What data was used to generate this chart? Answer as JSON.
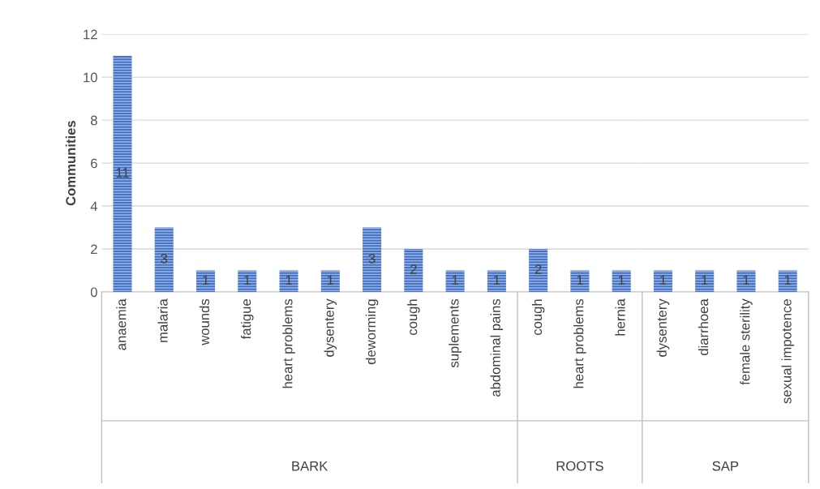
{
  "chart_data": [
    {
      "type": "bar",
      "ylabel": "Communities",
      "xlabel": "BARK",
      "categories": [
        "anaemia",
        "malaria",
        "wounds",
        "fatigue",
        "heart problems",
        "dysentery",
        "deworming",
        "cough",
        "suplements",
        "abdominal pains"
      ],
      "values": [
        11,
        3,
        1,
        1,
        1,
        1,
        3,
        2,
        1,
        1
      ],
      "color": "#4472c4",
      "ylim": [
        0,
        12
      ],
      "yticks": [
        0,
        2,
        4,
        6,
        8,
        10,
        12
      ],
      "grid": "y",
      "data_labels": true
    },
    {
      "type": "bar",
      "xlabel": "ROOTS",
      "categories": [
        "cough",
        "heart problems",
        "hernia"
      ],
      "values": [
        2,
        1,
        1
      ],
      "color": "#4472c4",
      "ylim": [
        0,
        12
      ],
      "yticks": [
        0,
        2,
        4,
        6,
        8,
        10,
        12
      ],
      "grid": "y",
      "data_labels": true,
      "tick_labels": "x"
    },
    {
      "type": "bar",
      "xlabel": "SAP",
      "categories": [
        "dysentery",
        "diarrhoea",
        "female sterility",
        "sexual impotence"
      ],
      "values": [
        1,
        1,
        1,
        1
      ],
      "color": "#4472c4",
      "ylim": [
        0,
        12
      ],
      "yticks": [
        0,
        2,
        4,
        6,
        8,
        10,
        12
      ],
      "grid": "y",
      "data_labels": true,
      "tick_labels": "x"
    }
  ]
}
